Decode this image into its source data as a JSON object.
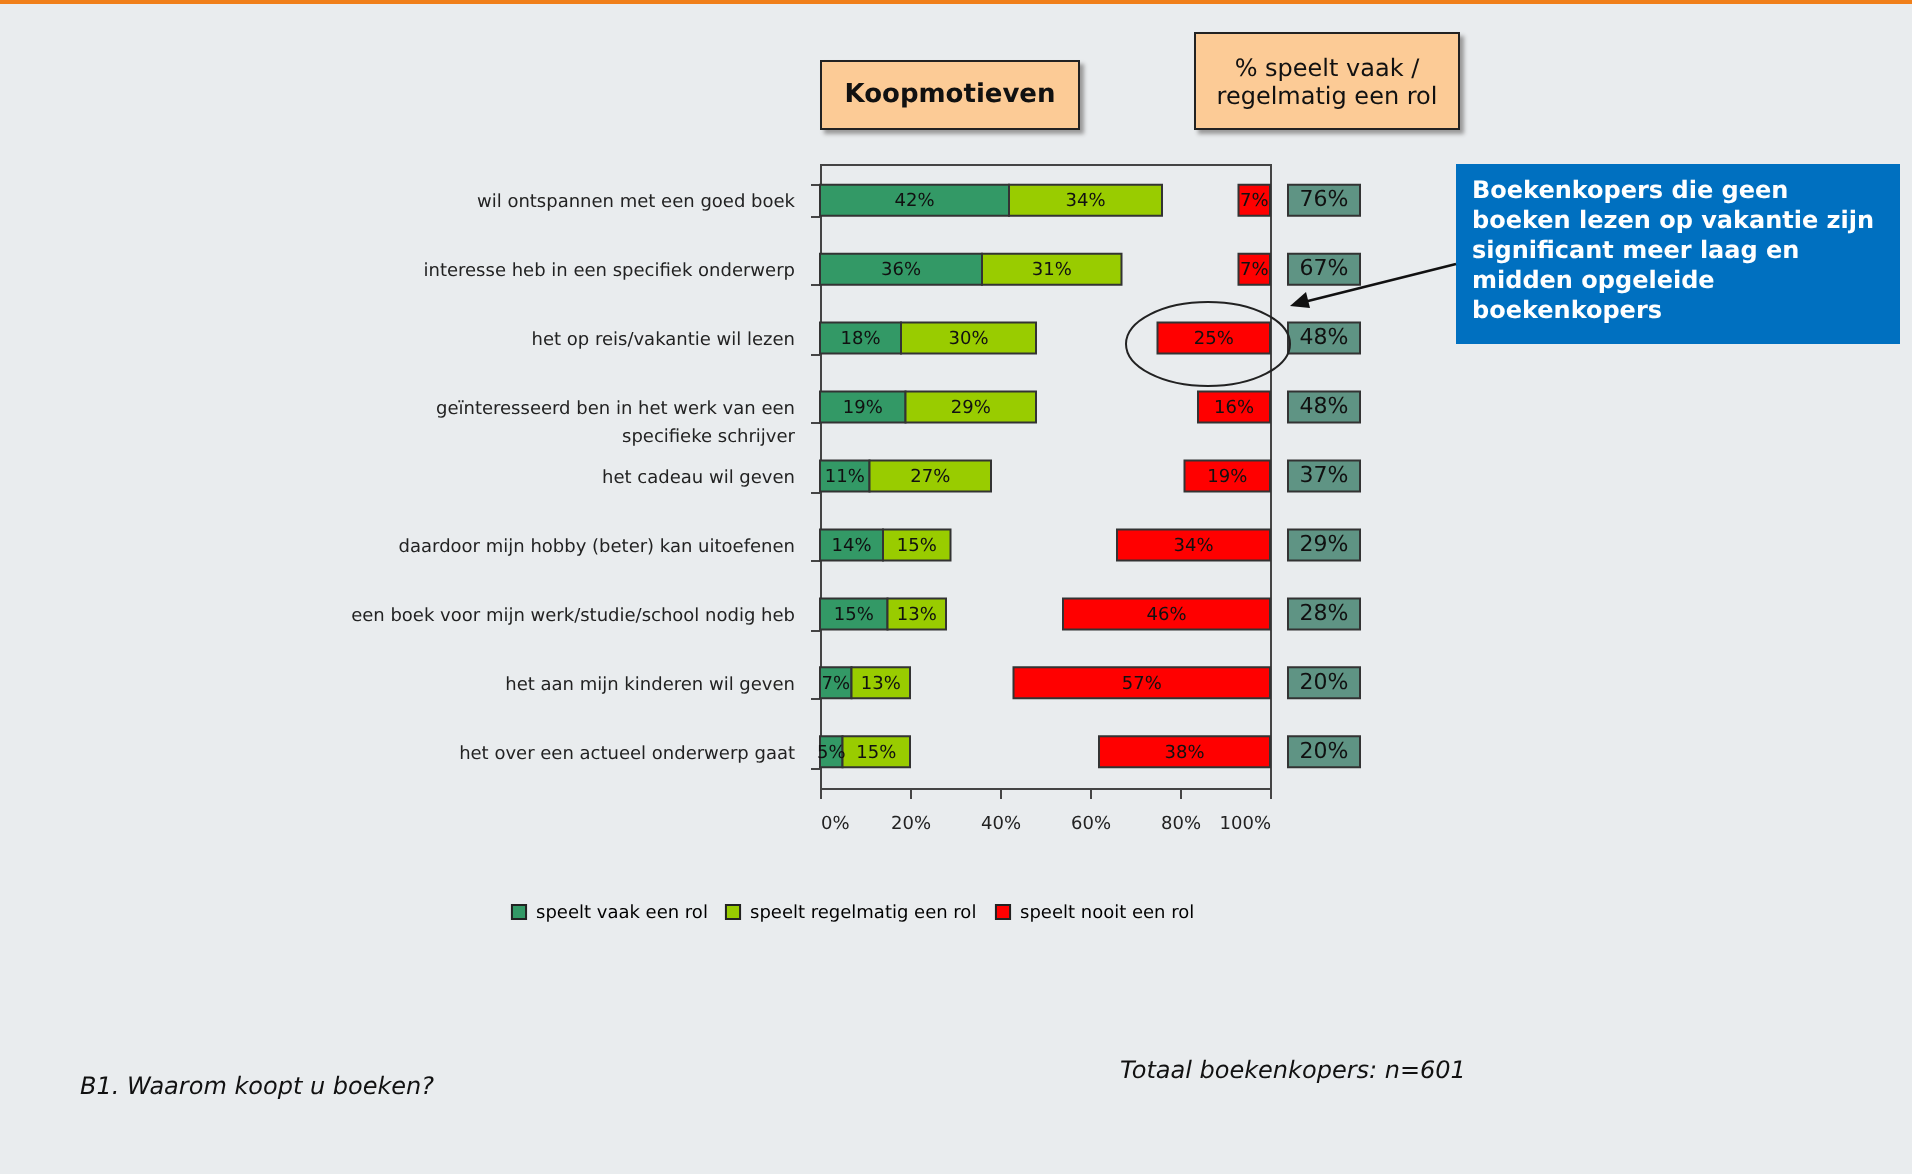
{
  "chart_data": {
    "type": "bar",
    "orientation": "horizontal",
    "title": "Koopmotieven",
    "categories": [
      "wil ontspannen met een goed boek",
      "interesse heb in een specifiek onderwerp",
      "het op reis/vakantie wil lezen",
      "geïnteresseerd ben in het werk van een specifieke schrijver",
      "het cadeau wil geven",
      "daardoor mijn hobby (beter) kan uitoefenen",
      "een boek voor mijn werk/studie/school nodig heb",
      "het aan mijn kinderen wil geven",
      "het over een actueel onderwerp gaat"
    ],
    "series": [
      {
        "name": "speelt vaak een rol",
        "color": "#339966",
        "values": [
          42,
          36,
          18,
          19,
          11,
          14,
          15,
          7,
          5
        ],
        "base": [
          0,
          0,
          0,
          0,
          0,
          0,
          0,
          0,
          0
        ],
        "value_labels": [
          "42%",
          "36%",
          "18%",
          "19%",
          "11%",
          "14%",
          "15%",
          "7%",
          "5%"
        ]
      },
      {
        "name": "speelt regelmatig een rol",
        "color": "#99cc00",
        "values": [
          34,
          31,
          30,
          29,
          27,
          15,
          13,
          13,
          15
        ],
        "base": [
          42,
          36,
          18,
          19,
          11,
          14,
          15,
          7,
          5
        ],
        "value_labels": [
          "34%",
          "31%",
          "30%",
          "29%",
          "27%",
          "15%",
          "13%",
          "13%",
          "15%"
        ]
      },
      {
        "name": "speelt nooit een rol",
        "color": "#ff0000",
        "values": [
          7,
          7,
          25,
          16,
          19,
          34,
          46,
          57,
          38
        ],
        "base": [
          93,
          93,
          75,
          84,
          81,
          66,
          54,
          43,
          62
        ],
        "value_labels": [
          "7%",
          "7%",
          "25%",
          "16%",
          "19%",
          "34%",
          "46%",
          "57%",
          "38%"
        ]
      }
    ],
    "xlim": [
      0,
      100
    ],
    "xticks": [
      {
        "value": 0,
        "label": "0%"
      },
      {
        "value": 20,
        "label": "20%"
      },
      {
        "value": 40,
        "label": "40%"
      },
      {
        "value": 60,
        "label": "60%"
      },
      {
        "value": 80,
        "label": "80%"
      },
      {
        "value": 100,
        "label": "100%"
      }
    ],
    "legend": "bottom",
    "annotations": [
      "% speelt vaak / regelmatig een rol",
      "Boekenkopers die geen boeken lezen op vakantie zijn significant meer laag en midden opgeleide boekenkopers",
      "B1. Waarom koopt u boeken?",
      "Totaal boekenkopers: n=601",
      "76%",
      "67%",
      "48%",
      "48%",
      "37%",
      "29%",
      "28%",
      "20%",
      "20%"
    ]
  }
}
